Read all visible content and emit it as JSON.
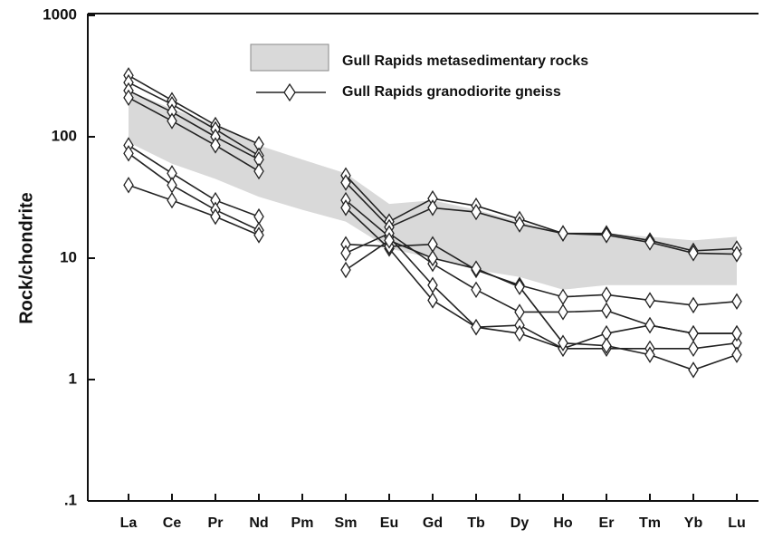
{
  "chart_data": {
    "type": "line",
    "y_label": "Rock/chondrite",
    "log_y": true,
    "categories": [
      "La",
      "Ce",
      "Pr",
      "Nd",
      "Pm",
      "Sm",
      "Eu",
      "Gd",
      "Tb",
      "Dy",
      "Ho",
      "Er",
      "Tm",
      "Yb",
      "Lu"
    ],
    "ylim": [
      0.1,
      1000
    ],
    "yticks": [
      {
        "value": 0.1,
        "label": ".1"
      },
      1,
      10,
      100,
      1000
    ],
    "band": {
      "name": "Gull Rapids metasedimentary rocks",
      "color": "#d9d9d9",
      "upper": [
        240,
        170,
        125,
        85,
        65,
        50,
        28,
        30,
        25,
        20,
        16,
        16,
        15,
        14,
        15
      ],
      "lower": [
        90,
        60,
        45,
        32,
        25,
        20,
        12,
        10,
        8,
        7,
        5.5,
        6,
        6,
        6,
        6
      ]
    },
    "series_name": "Gull Rapids granodiorite gneiss",
    "color": "#222222",
    "series": [
      {
        "values": [
          320,
          200,
          125,
          87,
          null,
          48,
          20,
          31,
          27,
          21,
          16,
          16,
          14,
          11.5,
          12
        ]
      },
      {
        "values": [
          280,
          185,
          115,
          70,
          null,
          42,
          18,
          26,
          24,
          19,
          16,
          15.5,
          13.5,
          11,
          10.8
        ]
      },
      {
        "values": [
          240,
          160,
          100,
          65,
          null,
          30,
          15,
          6,
          2.7,
          2.8,
          1.8,
          2.4,
          2.8,
          2.4,
          2.4
        ]
      },
      {
        "values": [
          210,
          135,
          85,
          52,
          null,
          26,
          12,
          4.5,
          2.7,
          2.4,
          1.8,
          1.8,
          1.8,
          1.8,
          2.0
        ]
      },
      {
        "values": [
          85,
          50,
          30,
          22,
          null,
          13,
          12.5,
          13,
          8,
          6,
          4.8,
          5,
          4.5,
          4.1,
          4.4
        ]
      },
      {
        "values": [
          73,
          40,
          25,
          17,
          null,
          11,
          16,
          9,
          5.5,
          3.6,
          3.6,
          3.7,
          2.8,
          2.4,
          2.4
        ]
      },
      {
        "values": [
          40,
          30,
          22,
          15.5,
          null,
          8,
          14,
          10,
          8.2,
          5.8,
          2.0,
          1.9,
          1.6,
          1.2,
          1.6
        ]
      }
    ]
  }
}
